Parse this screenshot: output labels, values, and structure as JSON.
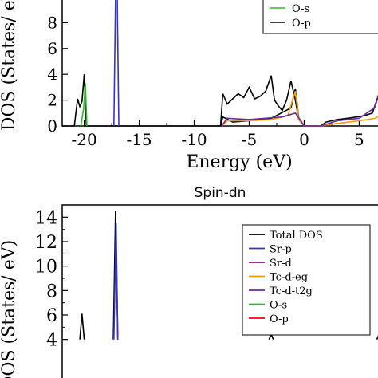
{
  "chart_data": [
    {
      "type": "line",
      "title": "",
      "xlabel": "Energy (eV)",
      "ylabel": "DOS (States/ eV)",
      "xlim": [
        -22,
        7
      ],
      "ylim": [
        0,
        10
      ],
      "x_ticks": [
        "-20",
        "-15",
        "-10",
        "-5",
        "0",
        "5"
      ],
      "y_ticks": [
        "0",
        "2",
        "4",
        "6",
        "8"
      ],
      "legend": {
        "placement": "top-right",
        "visible_entries": [
          "O-s",
          "O-p"
        ]
      },
      "series": [
        {
          "name": "O-p",
          "color": "#000000",
          "points": [
            [
              -22,
              0
            ],
            [
              -20.9,
              0
            ],
            [
              -20.6,
              2.1
            ],
            [
              -20.4,
              1.5
            ],
            [
              -20.2,
              1.9
            ],
            [
              -20.0,
              4.0
            ],
            [
              -19.8,
              0
            ],
            [
              -7.6,
              0
            ],
            [
              -7.4,
              2.5
            ],
            [
              -7.0,
              1.7
            ],
            [
              -6.5,
              2.1
            ],
            [
              -6.0,
              2.5
            ],
            [
              -5.5,
              2.2
            ],
            [
              -5.0,
              3.0
            ],
            [
              -4.5,
              2.1
            ],
            [
              -4.0,
              2.3
            ],
            [
              -3.5,
              2.7
            ],
            [
              -3.0,
              3.9
            ],
            [
              -2.7,
              2.0
            ],
            [
              -2.3,
              1.5
            ],
            [
              -2.0,
              1.2
            ],
            [
              -1.6,
              2.0
            ],
            [
              -1.2,
              3.5
            ],
            [
              -0.8,
              2.0
            ],
            [
              -0.5,
              0.5
            ],
            [
              0,
              0
            ],
            [
              1.5,
              0
            ],
            [
              2.0,
              0.3
            ],
            [
              3.0,
              0.5
            ],
            [
              4.0,
              0.6
            ],
            [
              5.5,
              0.8
            ],
            [
              6.2,
              1.0
            ],
            [
              6.8,
              2.5
            ],
            [
              7,
              2.9
            ]
          ]
        },
        {
          "name": "Total DOS",
          "color": "#000000",
          "points": [
            [
              -7.6,
              0
            ],
            [
              -7.4,
              0.7
            ],
            [
              -6.5,
              0.3
            ],
            [
              -5.0,
              0.4
            ],
            [
              -3.0,
              0.6
            ],
            [
              -1.2,
              1.4
            ],
            [
              -0.8,
              2.9
            ],
            [
              -0.5,
              0.6
            ],
            [
              0,
              0
            ]
          ]
        },
        {
          "name": "O-s",
          "color": "#2db82d",
          "points": [
            [
              -20.3,
              0
            ],
            [
              -20.05,
              1.4
            ],
            [
              -19.9,
              3.3
            ],
            [
              -19.75,
              0
            ]
          ]
        },
        {
          "name": "Sr-p",
          "color": "#3333cc",
          "points": [
            [
              -17.3,
              0
            ],
            [
              -17.15,
              10
            ],
            [
              -17.0,
              10
            ],
            [
              -16.85,
              0
            ]
          ]
        },
        {
          "name": "Tc-d-eg",
          "color": "#ff9900",
          "points": [
            [
              -7.5,
              0
            ],
            [
              -7.0,
              0.4
            ],
            [
              -5.0,
              0.4
            ],
            [
              -3.0,
              0.5
            ],
            [
              -1.5,
              0.8
            ],
            [
              -0.8,
              2.7
            ],
            [
              -0.5,
              0.5
            ],
            [
              0,
              0
            ],
            [
              1.5,
              0
            ],
            [
              3,
              0.2
            ],
            [
              5,
              0.4
            ],
            [
              6.5,
              0.6
            ],
            [
              7,
              0.9
            ]
          ]
        },
        {
          "name": "Tc-d-t2g",
          "color": "#6a2aa8",
          "points": [
            [
              -7.5,
              0
            ],
            [
              -7.0,
              0.6
            ],
            [
              -5.0,
              0.5
            ],
            [
              -2.0,
              0.7
            ],
            [
              -0.8,
              1.0
            ],
            [
              -0.3,
              0.4
            ],
            [
              0,
              0
            ],
            [
              1.5,
              0
            ],
            [
              3,
              0.4
            ],
            [
              5,
              0.6
            ],
            [
              6.4,
              1.4
            ],
            [
              6.8,
              2.4
            ],
            [
              7,
              2.3
            ]
          ]
        }
      ]
    },
    {
      "type": "line",
      "title": "Spin-dn",
      "xlabel": "",
      "ylabel": "DOS (States/ eV)",
      "xlim": [
        -22,
        7
      ],
      "ylim": [
        0,
        15
      ],
      "y_ticks": [
        "4",
        "6",
        "8",
        "10",
        "12",
        "14"
      ],
      "legend": {
        "placement": "top-right",
        "entries": [
          {
            "name": "Total DOS",
            "color": "#000000"
          },
          {
            "name": "Sr-p",
            "color": "#3333cc"
          },
          {
            "name": "Sr-d",
            "color": "#8b1a8b"
          },
          {
            "name": "Tc-d-eg",
            "color": "#ff9900"
          },
          {
            "name": "Tc-d-t2g",
            "color": "#6a2aa8"
          },
          {
            "name": "O-s",
            "color": "#2db82d"
          },
          {
            "name": "O-p",
            "color": "#ff0000"
          }
        ]
      },
      "series": [
        {
          "name": "Total DOS",
          "color": "#000000",
          "points": [
            [
              -20.4,
              4.0
            ],
            [
              -20.2,
              6.1
            ],
            [
              -20.0,
              4.0
            ]
          ]
        },
        {
          "name": "Total DOS",
          "color": "#000000",
          "points": [
            [
              -17.35,
              4.0
            ],
            [
              -17.15,
              14.5
            ],
            [
              -16.95,
              4.0
            ]
          ]
        },
        {
          "name": "Sr-p",
          "color": "#3333cc",
          "points": [
            [
              -17.3,
              4.0
            ],
            [
              -17.1,
              13.5
            ],
            [
              -16.95,
              4.0
            ]
          ]
        },
        {
          "name": "Total DOS",
          "color": "#000000",
          "points": [
            [
              -3.2,
              4.0
            ],
            [
              -3.0,
              4.4
            ],
            [
              -2.8,
              4.0
            ]
          ]
        },
        {
          "name": "Total DOS",
          "color": "#000000",
          "points": [
            [
              6.6,
              4.0
            ],
            [
              6.8,
              4.4
            ],
            [
              7.0,
              4.0
            ]
          ]
        }
      ]
    }
  ]
}
